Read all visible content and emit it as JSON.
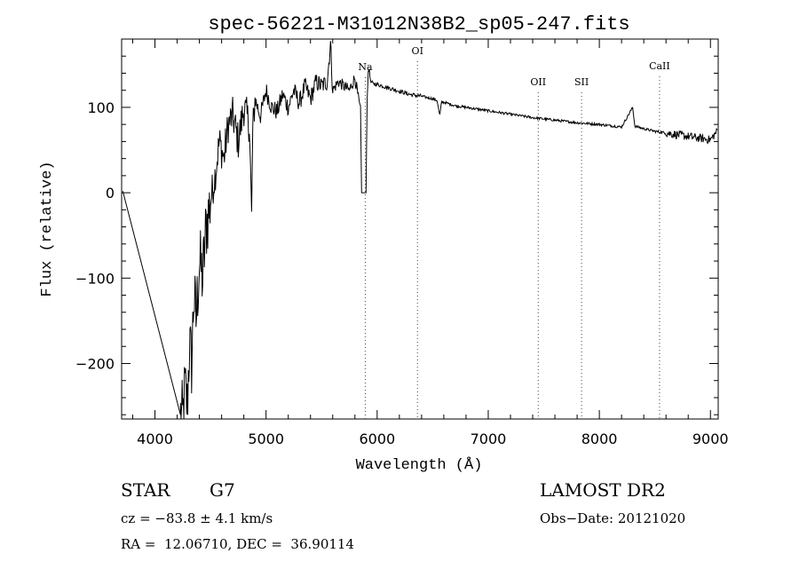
{
  "chart_data": {
    "type": "line",
    "title": "spec-56221-M31012N38B2_sp05-247.fits",
    "xlabel": "Wavelength (Å)",
    "ylabel": "Flux (relative)",
    "xlim": [
      3700,
      9070
    ],
    "ylim": [
      -265,
      180
    ],
    "xticks": [
      4000,
      5000,
      6000,
      7000,
      8000,
      9000
    ],
    "yticks": [
      -200,
      -100,
      0,
      100
    ],
    "line_marks": [
      {
        "label": "Na",
        "x": 5893
      },
      {
        "label": "OI",
        "x": 6363
      },
      {
        "label": "OII",
        "x": 7450
      },
      {
        "label": "SII",
        "x": 7840
      },
      {
        "label": "CaII",
        "x": 8542
      }
    ],
    "series": [
      {
        "x": [
          3710,
          4230,
          4250,
          4270,
          4290,
          4310,
          4330,
          4350,
          4370,
          4400,
          4430,
          4460,
          4500,
          4540,
          4580,
          4620,
          4660,
          4700,
          4750,
          4800,
          4850,
          4870,
          4880,
          4900,
          4950,
          5000,
          5050,
          5100,
          5150,
          5200,
          5250,
          5300,
          5350,
          5400,
          5450,
          5500,
          5550,
          5580,
          5600,
          5650,
          5700,
          5750,
          5800,
          5850,
          5860,
          5880,
          5890,
          5900,
          5910,
          5920,
          5930,
          5940,
          5960,
          6000,
          6100,
          6200,
          6300,
          6400,
          6500,
          6540,
          6563,
          6580,
          6600,
          6700,
          6800,
          6900,
          7000,
          7200,
          7400,
          7600,
          7800,
          8000,
          8200,
          8300,
          8320,
          8400,
          8500,
          8600,
          8700,
          8800,
          8900,
          9000,
          9060
        ],
        "values": [
          2,
          -260,
          -265,
          -230,
          -250,
          -180,
          -200,
          -120,
          -150,
          -80,
          -100,
          -40,
          -10,
          20,
          60,
          40,
          80,
          90,
          60,
          100,
          80,
          -30,
          70,
          110,
          90,
          120,
          100,
          95,
          115,
          100,
          120,
          105,
          125,
          110,
          130,
          125,
          130,
          175,
          120,
          130,
          125,
          120,
          135,
          95,
          0,
          0,
          0,
          0,
          110,
          140,
          145,
          130,
          128,
          127,
          123,
          119,
          115,
          113,
          110,
          108,
          90,
          106,
          106,
          102,
          100,
          98,
          96,
          92,
          88,
          85,
          82,
          80,
          77,
          100,
          78,
          75,
          72,
          70,
          68,
          66,
          64,
          62,
          72
        ]
      }
    ]
  },
  "info": {
    "object_type": "STAR",
    "subclass": "G7",
    "survey": "LAMOST DR2",
    "cz": "cz = −83.8 ± 4.1 km/s",
    "obs_date": "Obs−Date: 20121020",
    "coords": "RA =  12.06710, DEC =  36.90114"
  }
}
